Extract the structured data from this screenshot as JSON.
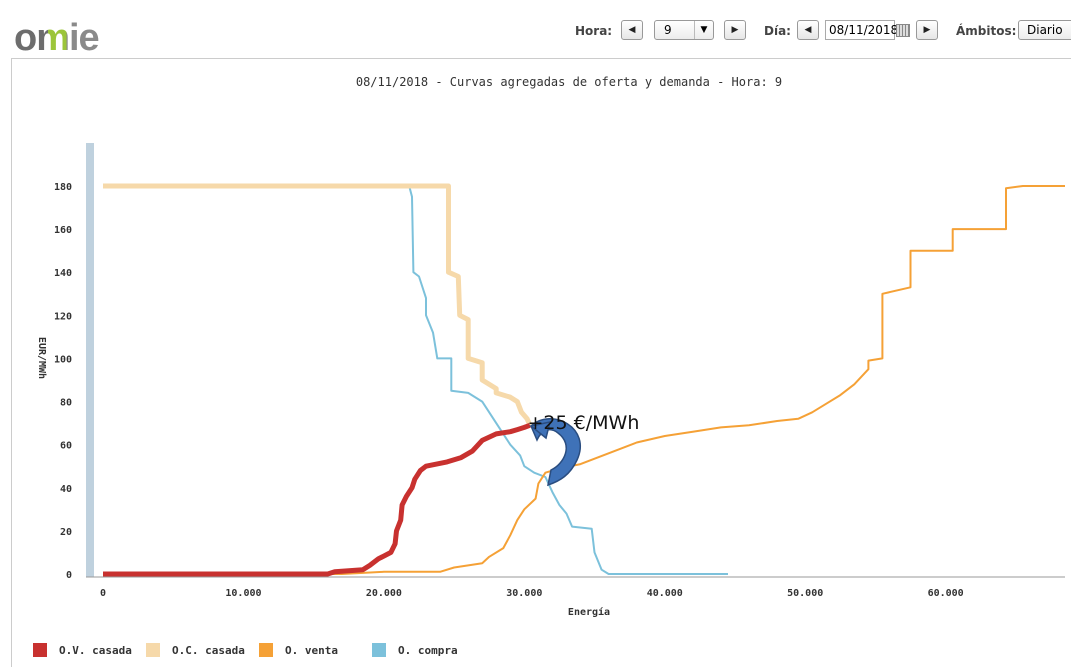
{
  "logo": {
    "text": "omie"
  },
  "toolbar": {
    "hora_label": "Hora:",
    "hora_value": "9",
    "dia_label": "Día:",
    "dia_value": "08/11/2018",
    "ambitos_label": "Ámbitos:",
    "ambitos_value": "Diario"
  },
  "chart_data": {
    "type": "line",
    "title": "08/11/2018 - Curvas agregadas de oferta y demanda - Hora: 9",
    "xlabel": "Energía",
    "ylabel": "EUR/MWh",
    "xlim": [
      -500,
      68500
    ],
    "ylim": [
      0,
      180
    ],
    "x_ticks": [
      0,
      10000,
      20000,
      30000,
      40000,
      50000,
      60000
    ],
    "x_tick_labels": [
      "0",
      "10.000",
      "20.000",
      "30.000",
      "40.000",
      "50.000",
      "60.000"
    ],
    "y_ticks": [
      0,
      20,
      40,
      60,
      80,
      100,
      120,
      140,
      160,
      180
    ],
    "y_tick_labels": [
      "0",
      "20",
      "40",
      "60",
      "80",
      "100",
      "120",
      "140",
      "160",
      "180"
    ],
    "grid": false,
    "legend_position": "bottom",
    "annotation": {
      "text": "+25 €/MWh",
      "x": 34500,
      "y": 70
    },
    "series": [
      {
        "name": "O.V. casada",
        "color": "#c8312f",
        "width": 5,
        "points": [
          [
            0,
            0
          ],
          [
            16000,
            0
          ],
          [
            16500,
            1
          ],
          [
            18500,
            2
          ],
          [
            19000,
            4
          ],
          [
            19600,
            7
          ],
          [
            20500,
            10
          ],
          [
            20800,
            14
          ],
          [
            20900,
            20
          ],
          [
            21200,
            25
          ],
          [
            21300,
            32
          ],
          [
            21600,
            36
          ],
          [
            22000,
            40
          ],
          [
            22200,
            44
          ],
          [
            22600,
            48
          ],
          [
            23000,
            50
          ],
          [
            24500,
            52
          ],
          [
            25500,
            54
          ],
          [
            26300,
            57
          ],
          [
            27000,
            62
          ],
          [
            28000,
            65
          ],
          [
            29000,
            66
          ],
          [
            29500,
            67
          ],
          [
            30000,
            68
          ],
          [
            30400,
            69
          ]
        ]
      },
      {
        "name": "O.C. casada",
        "color": "#f6d9aa",
        "width": 5,
        "points": [
          [
            0,
            180
          ],
          [
            24600,
            180
          ],
          [
            24600,
            140
          ],
          [
            25300,
            138
          ],
          [
            25400,
            120
          ],
          [
            26000,
            118
          ],
          [
            26000,
            100
          ],
          [
            27000,
            98
          ],
          [
            27000,
            90
          ],
          [
            28000,
            86
          ],
          [
            28000,
            84
          ],
          [
            29000,
            82
          ],
          [
            29500,
            80
          ],
          [
            29800,
            75
          ],
          [
            30200,
            72
          ],
          [
            30400,
            69
          ]
        ]
      },
      {
        "name": "O. venta",
        "color": "#f5a136",
        "width": 2,
        "points": [
          [
            0,
            0
          ],
          [
            15000,
            0
          ],
          [
            17000,
            0
          ],
          [
            20000,
            1
          ],
          [
            24000,
            1
          ],
          [
            25000,
            3
          ],
          [
            26000,
            4
          ],
          [
            27000,
            5
          ],
          [
            27500,
            8
          ],
          [
            28500,
            12
          ],
          [
            29000,
            18
          ],
          [
            29500,
            25
          ],
          [
            30000,
            30
          ],
          [
            30800,
            35
          ],
          [
            31000,
            42
          ],
          [
            31500,
            47
          ],
          [
            32500,
            49
          ],
          [
            34000,
            51
          ],
          [
            36000,
            56
          ],
          [
            38000,
            61
          ],
          [
            40000,
            64
          ],
          [
            42000,
            66
          ],
          [
            44000,
            68
          ],
          [
            46000,
            69
          ],
          [
            48000,
            71
          ],
          [
            49500,
            72
          ],
          [
            50500,
            75
          ],
          [
            51500,
            79
          ],
          [
            52500,
            83
          ],
          [
            53500,
            88
          ],
          [
            54500,
            95
          ],
          [
            54500,
            99
          ],
          [
            55500,
            100
          ],
          [
            55500,
            130
          ],
          [
            57500,
            133
          ],
          [
            57500,
            150
          ],
          [
            60500,
            150
          ],
          [
            60500,
            160
          ],
          [
            64300,
            160
          ],
          [
            64300,
            179
          ],
          [
            65500,
            180
          ],
          [
            68500,
            180
          ]
        ]
      },
      {
        "name": "O. compra",
        "color": "#7cc1db",
        "width": 2,
        "points": [
          [
            0,
            180
          ],
          [
            21800,
            180
          ],
          [
            22000,
            175
          ],
          [
            22100,
            140
          ],
          [
            22500,
            138
          ],
          [
            23000,
            128
          ],
          [
            23000,
            120
          ],
          [
            23500,
            112
          ],
          [
            23800,
            100
          ],
          [
            24800,
            100
          ],
          [
            24800,
            85
          ],
          [
            26000,
            84
          ],
          [
            27000,
            80
          ],
          [
            27500,
            75
          ],
          [
            28000,
            70
          ],
          [
            28500,
            65
          ],
          [
            29000,
            60
          ],
          [
            29700,
            55
          ],
          [
            30000,
            50
          ],
          [
            30700,
            47
          ],
          [
            31500,
            45
          ],
          [
            32000,
            38
          ],
          [
            32500,
            32
          ],
          [
            33000,
            28
          ],
          [
            33400,
            22
          ],
          [
            34800,
            21
          ],
          [
            35000,
            10
          ],
          [
            35500,
            2
          ],
          [
            36000,
            0
          ],
          [
            44500,
            0
          ]
        ]
      }
    ]
  }
}
